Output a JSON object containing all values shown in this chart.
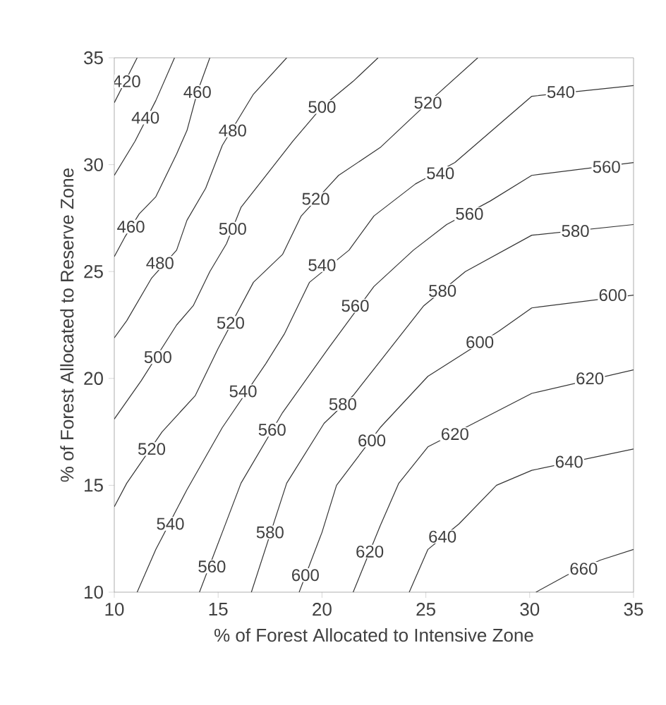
{
  "chart_data": {
    "type": "line",
    "xlabel": "% of Forest Allocated to Intensive Zone",
    "ylabel": "% of Forest Allocated to Reserve Zone",
    "xlim": [
      10,
      35
    ],
    "ylim": [
      10,
      35
    ],
    "xticks": [
      10,
      15,
      20,
      25,
      30,
      35
    ],
    "yticks": [
      10,
      15,
      20,
      25,
      30,
      35
    ],
    "grid": false,
    "legend": false,
    "marker": "none",
    "line_style": "solid",
    "series": [
      {
        "color": "#333333",
        "x": [
          10,
          11.1
        ],
        "values": [
          32.9,
          35
        ]
      },
      {
        "color": "#333333",
        "x": [
          10,
          11.0,
          12.0,
          12.9
        ],
        "values": [
          29.5,
          31.1,
          33.0,
          35
        ]
      },
      {
        "color": "#333333",
        "x": [
          10,
          10.5,
          11.2,
          12.0,
          13.0,
          13.5,
          14.0,
          14.6
        ],
        "values": [
          25.7,
          26.6,
          27.7,
          28.5,
          30.5,
          31.6,
          33.4,
          35
        ]
      },
      {
        "color": "#333333",
        "x": [
          10,
          10.6,
          11.8,
          13.0,
          13.5,
          14.4,
          15.2,
          16.7,
          18.3
        ],
        "values": [
          21.9,
          22.7,
          24.7,
          26.0,
          27.4,
          28.9,
          30.9,
          33.3,
          35
        ]
      },
      {
        "color": "#333333",
        "x": [
          10,
          11.3,
          13.0,
          13.8,
          14.6,
          15.4,
          16.1,
          18.6,
          20.0,
          21.5,
          22.7
        ],
        "values": [
          18.1,
          19.9,
          22.5,
          23.4,
          25.0,
          26.3,
          28.0,
          31.1,
          32.7,
          33.9,
          35
        ]
      },
      {
        "color": "#333333",
        "x": [
          10,
          10.6,
          12.3,
          13.9,
          15.0,
          16.7,
          18.1,
          19.0,
          20.8,
          22.8,
          25.1,
          27.5
        ],
        "values": [
          14.0,
          15.1,
          17.5,
          19.2,
          21.4,
          24.5,
          25.8,
          27.6,
          29.5,
          30.8,
          32.9,
          35
        ]
      },
      {
        "color": "#333333",
        "x": [
          11.1,
          12.0,
          13.5,
          15.2,
          17.3,
          18.2,
          19.4,
          21.3,
          22.5,
          24.5,
          26.4,
          30.1,
          35
        ],
        "values": [
          10,
          12.0,
          14.8,
          17.7,
          20.7,
          22.1,
          24.5,
          26.0,
          27.6,
          29.1,
          30.1,
          33.2,
          33.7
        ]
      },
      {
        "color": "#333333",
        "x": [
          14.1,
          15.2,
          16.1,
          18.1,
          20.3,
          22.5,
          24.4,
          26.0,
          28.1,
          30.1,
          35
        ],
        "values": [
          10,
          12.8,
          15.1,
          18.4,
          21.4,
          24.3,
          26.0,
          27.2,
          28.3,
          29.5,
          30.1
        ]
      },
      {
        "color": "#333333",
        "x": [
          16.6,
          18.3,
          20.1,
          21.5,
          24.9,
          26.9,
          30.1,
          35
        ],
        "values": [
          10,
          15.1,
          17.9,
          19.2,
          23.4,
          25.0,
          26.7,
          27.2
        ]
      },
      {
        "color": "#333333",
        "x": [
          18.9,
          20.0,
          20.7,
          22.8,
          25.1,
          28.5,
          30.1,
          35
        ],
        "values": [
          10,
          12.8,
          15.0,
          17.7,
          20.1,
          22.2,
          23.3,
          23.9
        ]
      },
      {
        "color": "#333333",
        "x": [
          21.5,
          22.8,
          23.7,
          25.1,
          27.3,
          30.1,
          35
        ],
        "values": [
          10,
          13.1,
          15.1,
          16.8,
          17.9,
          19.3,
          20.4
        ]
      },
      {
        "color": "#333333",
        "x": [
          24.2,
          25.1,
          26.6,
          28.4,
          30.1,
          35
        ],
        "values": [
          10,
          12.0,
          13.2,
          15.0,
          15.7,
          16.7
        ]
      },
      {
        "color": "#333333",
        "x": [
          30.3,
          31.8,
          33.4,
          35
        ],
        "values": [
          10,
          10.8,
          11.5,
          12.0
        ]
      }
    ],
    "annotations": [
      {
        "text": "420",
        "x": 10.6,
        "y": 33.9
      },
      {
        "text": "440",
        "x": 11.5,
        "y": 32.2
      },
      {
        "text": "460",
        "x": 14.0,
        "y": 33.4
      },
      {
        "text": "460",
        "x": 10.8,
        "y": 27.1
      },
      {
        "text": "480",
        "x": 15.7,
        "y": 31.6
      },
      {
        "text": "480",
        "x": 12.2,
        "y": 25.4
      },
      {
        "text": "500",
        "x": 20.0,
        "y": 32.7
      },
      {
        "text": "500",
        "x": 15.7,
        "y": 27.0
      },
      {
        "text": "500",
        "x": 12.1,
        "y": 21.0
      },
      {
        "text": "520",
        "x": 25.1,
        "y": 32.9
      },
      {
        "text": "520",
        "x": 19.7,
        "y": 28.4
      },
      {
        "text": "520",
        "x": 15.6,
        "y": 22.6
      },
      {
        "text": "520",
        "x": 11.8,
        "y": 16.7
      },
      {
        "text": "540",
        "x": 31.5,
        "y": 33.4
      },
      {
        "text": "540",
        "x": 25.7,
        "y": 29.6
      },
      {
        "text": "540",
        "x": 20.0,
        "y": 25.3
      },
      {
        "text": "540",
        "x": 16.2,
        "y": 19.4
      },
      {
        "text": "540",
        "x": 12.7,
        "y": 13.2
      },
      {
        "text": "560",
        "x": 33.7,
        "y": 29.9
      },
      {
        "text": "560",
        "x": 27.1,
        "y": 27.7
      },
      {
        "text": "560",
        "x": 21.6,
        "y": 23.4
      },
      {
        "text": "560",
        "x": 17.6,
        "y": 17.6
      },
      {
        "text": "560",
        "x": 14.7,
        "y": 11.2
      },
      {
        "text": "580",
        "x": 32.2,
        "y": 26.9
      },
      {
        "text": "580",
        "x": 25.8,
        "y": 24.1
      },
      {
        "text": "580",
        "x": 21.0,
        "y": 18.8
      },
      {
        "text": "580",
        "x": 17.5,
        "y": 12.8
      },
      {
        "text": "600",
        "x": 34.0,
        "y": 23.9
      },
      {
        "text": "600",
        "x": 27.6,
        "y": 21.7
      },
      {
        "text": "600",
        "x": 22.4,
        "y": 17.1
      },
      {
        "text": "600",
        "x": 19.2,
        "y": 10.8
      },
      {
        "text": "620",
        "x": 32.9,
        "y": 20.0
      },
      {
        "text": "620",
        "x": 26.4,
        "y": 17.4
      },
      {
        "text": "620",
        "x": 22.3,
        "y": 11.9
      },
      {
        "text": "640",
        "x": 31.9,
        "y": 16.1
      },
      {
        "text": "640",
        "x": 25.8,
        "y": 12.6
      },
      {
        "text": "660",
        "x": 32.6,
        "y": 11.1
      }
    ]
  }
}
